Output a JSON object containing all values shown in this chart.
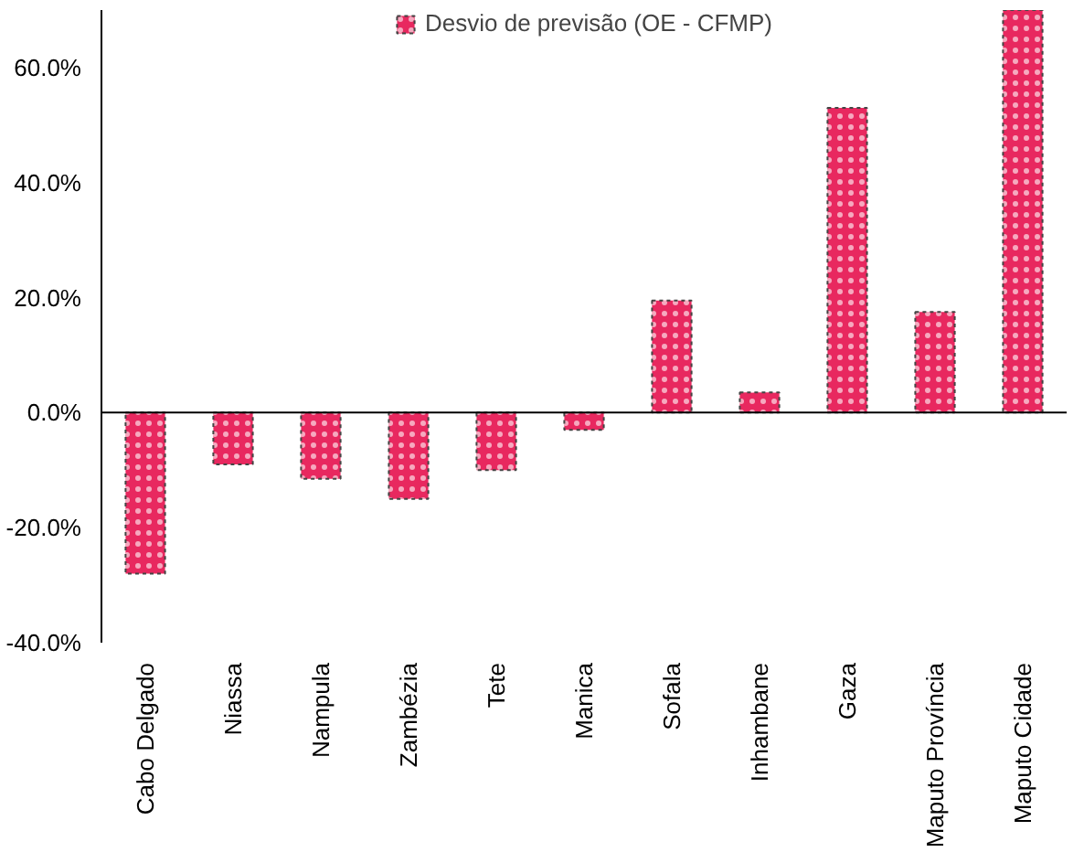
{
  "chart_data": {
    "type": "bar",
    "categories": [
      "Cabo Delgado",
      "Niassa",
      "Nampula",
      "Zambézia",
      "Tete",
      "Manica",
      "Sofala",
      "Inhambane",
      "Gaza",
      "Maputo Província",
      "Maputo Cidade"
    ],
    "series": [
      {
        "name": "Desvio de previsão (OE - CFMP)",
        "color": "#e8285f",
        "values": [
          -28,
          -9,
          -11.5,
          -15,
          -10,
          -3,
          19.5,
          3.5,
          53,
          17.5,
          70
        ]
      }
    ],
    "ylim": [
      -40,
      70
    ],
    "yticks": [
      {
        "value": -40,
        "label": "-40.0%"
      },
      {
        "value": -20,
        "label": "-20.0%"
      },
      {
        "value": 0,
        "label": "0.0%"
      },
      {
        "value": 20,
        "label": "20.0%"
      },
      {
        "value": 40,
        "label": "40.0%"
      },
      {
        "value": 60,
        "label": "60.0%"
      }
    ],
    "legend": "top"
  }
}
